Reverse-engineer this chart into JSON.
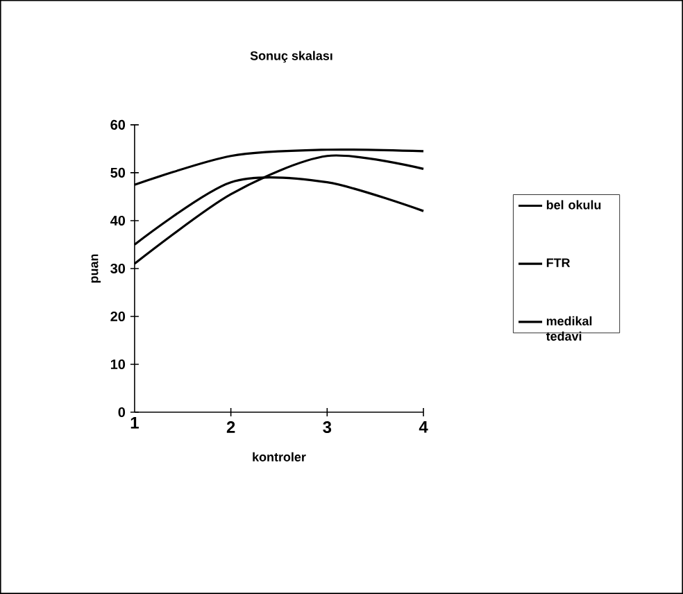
{
  "chart_data": {
    "type": "line",
    "title": "Sonuç skalası",
    "xlabel": "kontroler",
    "ylabel": "puan",
    "x": [
      1,
      2,
      3,
      4
    ],
    "xlim": [
      1,
      4
    ],
    "xticks": [
      1,
      2,
      3,
      4
    ],
    "ylim": [
      0,
      60
    ],
    "yticks": [
      0,
      10,
      20,
      30,
      40,
      50,
      60
    ],
    "grid": false,
    "legend": "right",
    "series": [
      {
        "name": "bel okulu",
        "color": "#000000",
        "values": [
          47.5,
          53.5,
          54.8,
          54.5
        ]
      },
      {
        "name": "FTR",
        "color": "#000000",
        "values": [
          35,
          48,
          48,
          42
        ]
      },
      {
        "name": "medikal tedavi",
        "color": "#000000",
        "values": [
          31,
          45.5,
          53.5,
          50.8
        ]
      }
    ]
  }
}
